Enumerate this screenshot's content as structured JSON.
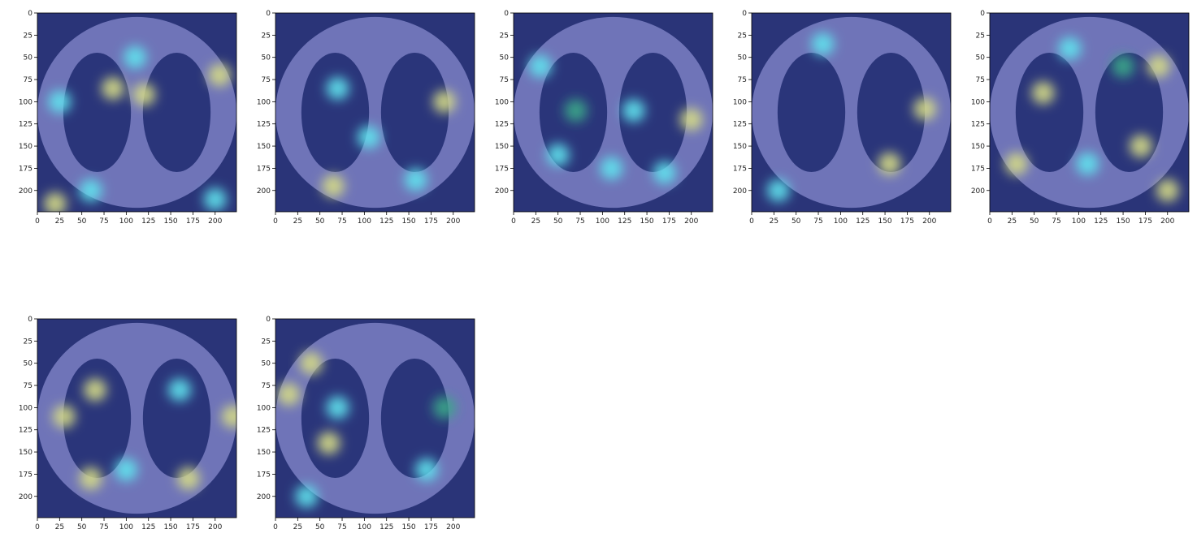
{
  "figure": {
    "axis": {
      "x_ticks": [
        "0",
        "25",
        "50",
        "75",
        "100",
        "125",
        "150",
        "175",
        "200"
      ],
      "y_ticks": [
        "0",
        "25",
        "50",
        "75",
        "100",
        "125",
        "150",
        "175",
        "200"
      ],
      "range": [
        0,
        224
      ]
    },
    "colors": {
      "background_dark": "#2a3478",
      "overlay_mid": "#6f74b8",
      "heat_cyan": "#5fe3ee",
      "heat_green": "#3aa88a",
      "heat_yellow": "#d6dc86",
      "lung_dark": "#1e2a6e"
    },
    "panels": [
      {
        "id": 1,
        "view": "axial-lung-ct-heatmap",
        "hotspots": [
          [
            85,
            85,
            "y"
          ],
          [
            120,
            92,
            "y"
          ],
          [
            25,
            100,
            "c"
          ],
          [
            110,
            50,
            "c"
          ],
          [
            205,
            70,
            "y"
          ],
          [
            60,
            200,
            "c"
          ],
          [
            200,
            210,
            "c"
          ],
          [
            20,
            215,
            "y"
          ]
        ]
      },
      {
        "id": 2,
        "view": "axial-lung-ct-heatmap",
        "hotspots": [
          [
            65,
            195,
            "y"
          ],
          [
            158,
            188,
            "c"
          ],
          [
            190,
            100,
            "y"
          ],
          [
            105,
            140,
            "c"
          ],
          [
            70,
            85,
            "c"
          ]
        ]
      },
      {
        "id": 3,
        "view": "axial-lung-ct-heatmap",
        "hotspots": [
          [
            70,
            110,
            "g"
          ],
          [
            135,
            110,
            "c"
          ],
          [
            200,
            120,
            "y"
          ],
          [
            50,
            160,
            "c"
          ],
          [
            110,
            175,
            "c"
          ],
          [
            170,
            180,
            "c"
          ],
          [
            30,
            60,
            "c"
          ]
        ]
      },
      {
        "id": 4,
        "view": "axial-lung-ct-heatmap",
        "hotspots": [
          [
            80,
            35,
            "c"
          ],
          [
            195,
            108,
            "y"
          ],
          [
            155,
            170,
            "y"
          ],
          [
            30,
            200,
            "c"
          ]
        ]
      },
      {
        "id": 5,
        "view": "axial-lung-ct-heatmap",
        "hotspots": [
          [
            170,
            150,
            "y"
          ],
          [
            190,
            60,
            "y"
          ],
          [
            60,
            90,
            "y"
          ],
          [
            30,
            170,
            "y"
          ],
          [
            110,
            170,
            "c"
          ],
          [
            150,
            60,
            "g"
          ],
          [
            200,
            200,
            "y"
          ],
          [
            90,
            40,
            "c"
          ]
        ]
      },
      {
        "id": 6,
        "view": "axial-lung-ct-heatmap",
        "hotspots": [
          [
            65,
            80,
            "y"
          ],
          [
            160,
            80,
            "c"
          ],
          [
            30,
            110,
            "y"
          ],
          [
            220,
            110,
            "y"
          ],
          [
            100,
            170,
            "c"
          ],
          [
            170,
            180,
            "y"
          ],
          [
            60,
            180,
            "y"
          ]
        ]
      },
      {
        "id": 7,
        "view": "axial-lung-ct-heatmap",
        "hotspots": [
          [
            40,
            50,
            "y"
          ],
          [
            15,
            85,
            "y"
          ],
          [
            60,
            140,
            "y"
          ],
          [
            70,
            100,
            "c"
          ],
          [
            190,
            100,
            "g"
          ],
          [
            170,
            170,
            "c"
          ],
          [
            35,
            200,
            "c"
          ]
        ]
      }
    ]
  }
}
